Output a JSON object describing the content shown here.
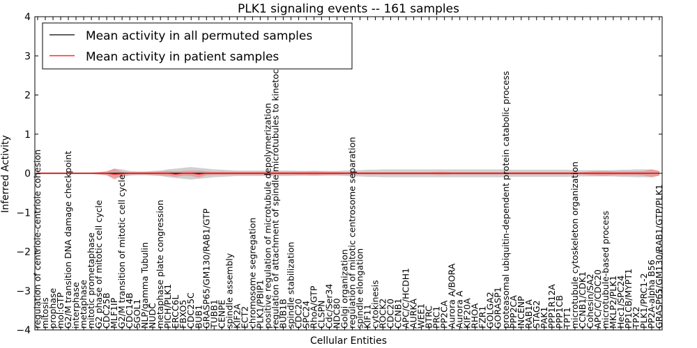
{
  "chart_data": {
    "type": "line",
    "title": "PLK1 signaling events -- 161 samples",
    "xlabel": "Cellular Entities",
    "ylabel": "Inferred Activity",
    "ylim": [
      -4,
      4
    ],
    "yticks": [
      -4,
      -3,
      -2,
      -1,
      0,
      1,
      2,
      3,
      4
    ],
    "grid": false,
    "legend_position": "top-left",
    "colors": {
      "permuted": "#000000",
      "patient": "#ff0000",
      "permuted_band": "#b0b0b0",
      "patient_band": "#f08080"
    },
    "categories": [
      "regulation of centriole-centriole cohesion",
      "mitosis",
      "prophase",
      "mol:GTP",
      "G2/M transition DNA damage checkpoint",
      "interphase",
      "metaphase",
      "mitotic prometaphase",
      "G2 phase of mitotic cell cycle",
      "CDC25B",
      "MLF1IP",
      "G2/M transition of mitotic cell cycle",
      "CDC14B",
      "SGOL1",
      "NLP/gamma Tubulin",
      "NUDC",
      "metaphase plate congression",
      "PICH/PLK1",
      "ERCC6L",
      "FBXO5",
      "CDC25C",
      "BUB1",
      "GRASP65/GM130/RAB1/GTP",
      "TUBB1",
      "CENPE",
      "spindle assembly",
      "KIF2A",
      "ECT2",
      "chromosome segregation",
      "PLK1/PBIP1",
      "positive regulation of microtubule depolymerization",
      "regulation of attachment of spindle microtubules to kinetochore",
      "BUB1B",
      "spindle stabilization",
      "CDC20",
      "SPC24",
      "RhoA/GTP",
      "CLSPN",
      "Cdc/Ser34",
      "NDC80",
      "Golgi organization",
      "regulation of mitotic centrosome separation",
      "spindle elongation",
      "KIF11",
      "cytokinesis",
      "ROCK2",
      "CDC20_",
      "CCNB1",
      "APC/C/HCDH1",
      "AURKA",
      "WEE1",
      "BTRC",
      "PRC1",
      "PP2CA",
      "Aurora A/BORA",
      "Aurora A",
      "KIF20A",
      "RHOA",
      "FZR1",
      "GOLGA2",
      "GORASP1",
      "proteasomal ubiquitin-dependent protein catabolic process",
      "PPP2CA",
      "INCENP",
      "RAB1A",
      "STAG2",
      "PAK1",
      "PPP1R12A",
      "PPP1CB",
      "TPT1",
      "microtubule cytoskeleton organization",
      "CCNB1/CDK1",
      "Cohesin/SA2",
      "APC/C/CDC20",
      "microtubule-based process",
      "MKLP2/PLK1",
      "Hec1/SPC24",
      "PP1CB/MYPT1",
      "TPX2",
      "PLK1/PRC1-2",
      "PP2A-alpha B56",
      "GRASP65/GM130/RAB1/GTP/PLK1"
    ],
    "label_texts": [
      "regulation of centriole-centriole cohesion",
      "mitosis",
      "prophase",
      "mol:GTP",
      "G2/M transition DNA damage checkpoint",
      "interphase",
      "metaphase",
      "mitotic prometaphase",
      "G2 phase of mitotic cell cycle",
      "CDC25B",
      "MLF1IP",
      "G2/M transition of mitotic cell cycle",
      "CDC14B",
      "SGOL1",
      "NLP/gamma Tubulin",
      "NUDC",
      "metaphase plate congression",
      "PICH/PLK1",
      "ERCC6L",
      "FBXO5",
      "CDC25C",
      "BUB1",
      "GRASP65/GM130/RAB1/GTP",
      "TUBB1",
      "CENPE",
      "spindle assembly",
      "KIF2A",
      "ECT2",
      "chromosome segregation",
      "PLK1/PBIP1",
      "positive regulation of microtubule depolymerization",
      "regulation of attachment of spindle microtubules to kinetochore",
      "BUB1B",
      "spindle stabilization",
      "CDC20",
      "SPC24",
      "RhoA/GTP",
      "CLSPN",
      "Cdc/Ser34",
      "NDC80",
      "Golgi organization",
      "regulation of mitotic centrosome separation",
      "spindle elongation",
      "KIF11",
      "cytokinesis",
      "ROCK2",
      "CDC20",
      "CCNB1",
      "APC/C/HCDH1",
      "AURKA",
      "WEE1",
      "BTRC",
      "PRC1",
      "PP2CA",
      "Aurora A/BORA",
      "Aurora A",
      "KIF20A",
      "RHOA",
      "FZR1",
      "GOLGA2",
      "GORASP1",
      "proteasomal ubiquitin-dependent protein catabolic process",
      "PPP2CA",
      "INCENP",
      "RAB1A",
      "STAG2",
      "PAK1",
      "PPP1R12A",
      "PPP1CB",
      "TPT1",
      "microtubule cytoskeleton organization",
      "CCNB1/CDK1",
      "Cohesin/SA2",
      "APC/C/CDC20",
      "microtubule-based process",
      "MKLP2/PLK1",
      "Hec1/SPC24",
      "PP1CB/MYPT1",
      "TPX2",
      "PLK1/PRC1-2",
      "PP2A-alpha B56",
      "GRASP65/GM130/RAB1/GTP/PLK1"
    ],
    "series": [
      {
        "name": "Mean activity in all permuted samples",
        "values": [
          0,
          0,
          0,
          0,
          0,
          0,
          0,
          0,
          0,
          0,
          0,
          0,
          0,
          0,
          0,
          0,
          0,
          0,
          0,
          0,
          0,
          0,
          0,
          0,
          0,
          0,
          0,
          0,
          0,
          0,
          0,
          0,
          0,
          0,
          0,
          0,
          0,
          0,
          0,
          0,
          0,
          0,
          0,
          0,
          0,
          0,
          0,
          0,
          0,
          0,
          0,
          0,
          0,
          0,
          0,
          0,
          0,
          0,
          0,
          0,
          0,
          0,
          0,
          0,
          0,
          0,
          0,
          0,
          0,
          0,
          0,
          0,
          0,
          0,
          0,
          0,
          0,
          0,
          0,
          0,
          0,
          0
        ],
        "band": [
          0.02,
          0.02,
          0.02,
          0.02,
          0.02,
          0.02,
          0.02,
          0.02,
          0.03,
          0.05,
          0.12,
          0.1,
          0.06,
          0.05,
          0.05,
          0.06,
          0.07,
          0.1,
          0.12,
          0.14,
          0.16,
          0.14,
          0.12,
          0.1,
          0.09,
          0.08,
          0.07,
          0.07,
          0.07,
          0.07,
          0.07,
          0.07,
          0.07,
          0.07,
          0.06,
          0.06,
          0.06,
          0.06,
          0.06,
          0.06,
          0.07,
          0.08,
          0.08,
          0.09,
          0.09,
          0.1,
          0.1,
          0.1,
          0.1,
          0.1,
          0.1,
          0.1,
          0.1,
          0.1,
          0.1,
          0.1,
          0.1,
          0.1,
          0.1,
          0.1,
          0.1,
          0.1,
          0.09,
          0.09,
          0.09,
          0.09,
          0.09,
          0.09,
          0.09,
          0.09,
          0.08,
          0.08,
          0.08,
          0.08,
          0.08,
          0.08,
          0.09,
          0.09,
          0.1,
          0.1,
          0.1,
          0.06
        ]
      },
      {
        "name": "Mean activity in patient samples",
        "values": [
          0,
          0,
          0,
          0,
          0,
          0,
          0,
          0,
          0,
          0,
          -0.02,
          -0.01,
          0,
          0,
          0,
          0,
          0,
          0,
          -0.02,
          0,
          0,
          -0.02,
          0,
          0,
          0,
          0,
          0,
          0,
          0,
          0,
          0,
          0,
          0,
          0,
          0,
          0,
          0,
          0,
          0,
          0,
          0,
          0,
          0,
          0,
          0,
          0,
          0,
          0,
          0,
          0,
          0,
          0,
          0,
          0,
          0,
          0,
          0,
          0,
          0,
          0,
          0,
          0,
          0,
          0,
          0,
          0,
          0,
          0,
          0,
          0,
          0,
          0,
          0,
          0,
          0,
          0,
          0,
          0,
          0,
          0,
          0,
          0
        ],
        "band": [
          0.02,
          0.02,
          0.02,
          0.02,
          0.02,
          0.02,
          0.02,
          0.02,
          0.03,
          0.05,
          0.14,
          0.05,
          0.03,
          0.03,
          0.03,
          0.04,
          0.05,
          0.06,
          0.07,
          0.06,
          0.07,
          0.09,
          0.05,
          0.04,
          0.04,
          0.04,
          0.04,
          0.04,
          0.04,
          0.04,
          0.04,
          0.04,
          0.04,
          0.04,
          0.05,
          0.05,
          0.06,
          0.05,
          0.04,
          0.04,
          0.03,
          0.03,
          0.03,
          0.03,
          0.03,
          0.03,
          0.03,
          0.03,
          0.03,
          0.03,
          0.03,
          0.03,
          0.04,
          0.04,
          0.03,
          0.03,
          0.03,
          0.03,
          0.03,
          0.03,
          0.03,
          0.03,
          0.03,
          0.03,
          0.03,
          0.03,
          0.03,
          0.03,
          0.03,
          0.03,
          0.03,
          0.03,
          0.05,
          0.06,
          0.06,
          0.05,
          0.05,
          0.05,
          0.05,
          0.06,
          0.1,
          0.06
        ]
      }
    ]
  }
}
